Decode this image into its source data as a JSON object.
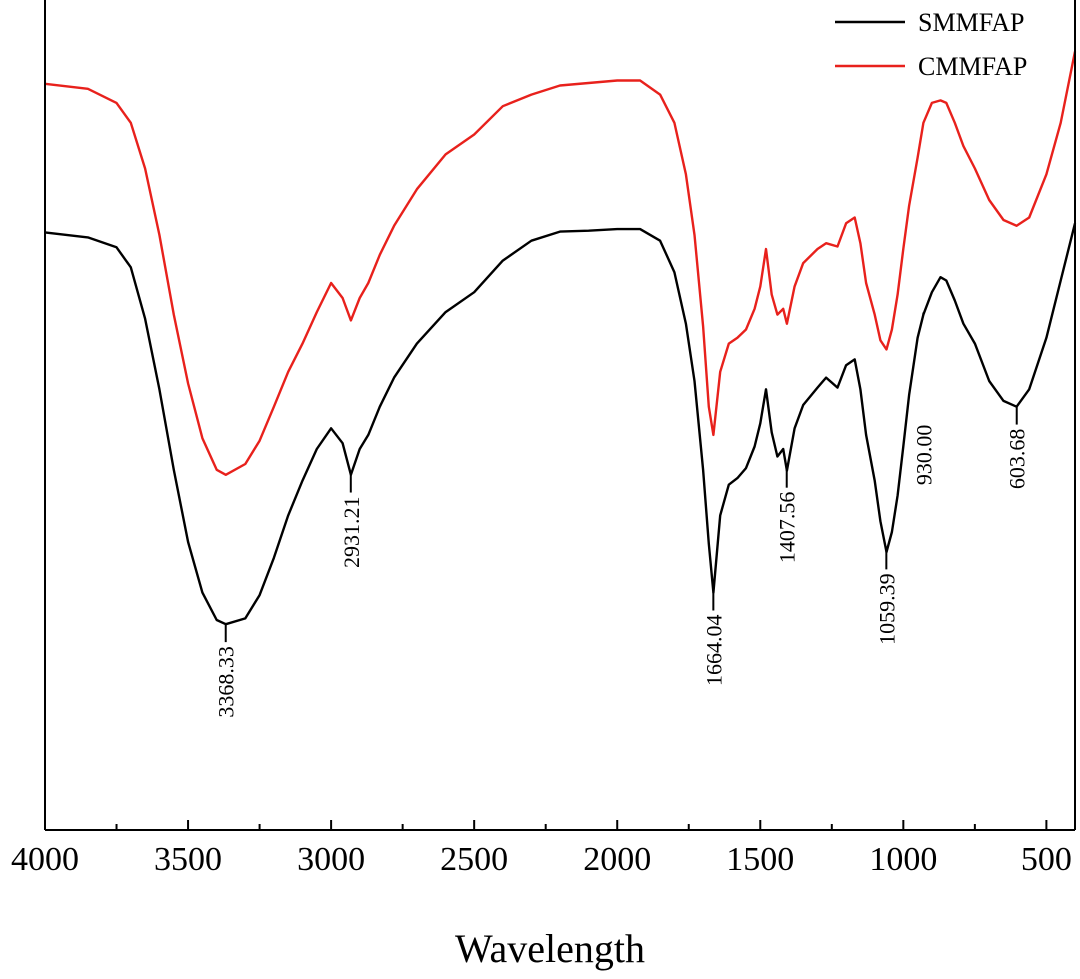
{
  "chart_data": {
    "type": "line",
    "xlabel": "Wavelength",
    "ylabel": "",
    "xlim": [
      4000,
      400
    ],
    "ylim": [
      0,
      100
    ],
    "x_reversed": true,
    "x_ticks": [
      4000,
      3500,
      3000,
      2500,
      2000,
      1500,
      1000,
      500
    ],
    "x_tick_labels": [
      "4000",
      "3500",
      "3000",
      "2500",
      "2000",
      "1500",
      "1000",
      "500"
    ],
    "grid": false,
    "legend_position": "top-right",
    "series": [
      {
        "name": "SMMFAP",
        "color": "#000000",
        "points": [
          [
            4000,
            72.0
          ],
          [
            3850,
            71.4
          ],
          [
            3750,
            70.2
          ],
          [
            3700,
            67.8
          ],
          [
            3650,
            61.6
          ],
          [
            3600,
            53.1
          ],
          [
            3550,
            43.4
          ],
          [
            3500,
            34.7
          ],
          [
            3450,
            28.6
          ],
          [
            3400,
            25.3
          ],
          [
            3368,
            24.8
          ],
          [
            3300,
            25.5
          ],
          [
            3250,
            28.3
          ],
          [
            3200,
            32.8
          ],
          [
            3150,
            37.9
          ],
          [
            3100,
            42.1
          ],
          [
            3050,
            45.9
          ],
          [
            3000,
            48.4
          ],
          [
            2960,
            46.6
          ],
          [
            2931,
            42.8
          ],
          [
            2900,
            45.9
          ],
          [
            2870,
            47.6
          ],
          [
            2830,
            51.0
          ],
          [
            2780,
            54.5
          ],
          [
            2700,
            58.6
          ],
          [
            2600,
            62.4
          ],
          [
            2500,
            64.8
          ],
          [
            2400,
            68.6
          ],
          [
            2300,
            71.0
          ],
          [
            2200,
            72.1
          ],
          [
            2100,
            72.2
          ],
          [
            2000,
            72.4
          ],
          [
            1920,
            72.4
          ],
          [
            1850,
            71.0
          ],
          [
            1800,
            67.2
          ],
          [
            1760,
            61.0
          ],
          [
            1730,
            54.1
          ],
          [
            1700,
            43.4
          ],
          [
            1680,
            34.5
          ],
          [
            1664,
            28.6
          ],
          [
            1640,
            37.9
          ],
          [
            1610,
            41.6
          ],
          [
            1580,
            42.4
          ],
          [
            1550,
            43.6
          ],
          [
            1520,
            46.2
          ],
          [
            1500,
            49.0
          ],
          [
            1480,
            53.1
          ],
          [
            1460,
            47.9
          ],
          [
            1440,
            45.0
          ],
          [
            1420,
            45.9
          ],
          [
            1407,
            43.3
          ],
          [
            1380,
            48.4
          ],
          [
            1350,
            51.2
          ],
          [
            1300,
            53.3
          ],
          [
            1270,
            54.5
          ],
          [
            1230,
            53.3
          ],
          [
            1200,
            56.0
          ],
          [
            1170,
            56.7
          ],
          [
            1150,
            53.1
          ],
          [
            1130,
            47.6
          ],
          [
            1100,
            42.1
          ],
          [
            1080,
            37.2
          ],
          [
            1059,
            33.5
          ],
          [
            1040,
            35.9
          ],
          [
            1020,
            40.3
          ],
          [
            1000,
            46.2
          ],
          [
            980,
            52.4
          ],
          [
            950,
            59.3
          ],
          [
            930,
            62.1
          ],
          [
            900,
            64.8
          ],
          [
            870,
            66.6
          ],
          [
            850,
            66.2
          ],
          [
            820,
            63.8
          ],
          [
            790,
            61.0
          ],
          [
            750,
            58.6
          ],
          [
            700,
            54.1
          ],
          [
            650,
            51.7
          ],
          [
            604,
            51.0
          ],
          [
            560,
            53.1
          ],
          [
            500,
            59.3
          ],
          [
            450,
            66.2
          ],
          [
            400,
            73.1
          ]
        ]
      },
      {
        "name": "CMMFAP",
        "color": "#e8211c",
        "points": [
          [
            4000,
            89.9
          ],
          [
            3850,
            89.3
          ],
          [
            3750,
            87.6
          ],
          [
            3700,
            85.2
          ],
          [
            3650,
            79.7
          ],
          [
            3600,
            71.7
          ],
          [
            3550,
            62.1
          ],
          [
            3500,
            53.8
          ],
          [
            3450,
            47.2
          ],
          [
            3400,
            43.4
          ],
          [
            3368,
            42.8
          ],
          [
            3300,
            44.1
          ],
          [
            3250,
            46.9
          ],
          [
            3200,
            51.0
          ],
          [
            3150,
            55.2
          ],
          [
            3100,
            58.6
          ],
          [
            3050,
            62.4
          ],
          [
            3000,
            65.9
          ],
          [
            2960,
            64.1
          ],
          [
            2931,
            61.4
          ],
          [
            2900,
            64.1
          ],
          [
            2870,
            65.9
          ],
          [
            2830,
            69.3
          ],
          [
            2780,
            72.8
          ],
          [
            2700,
            77.2
          ],
          [
            2600,
            81.4
          ],
          [
            2500,
            83.8
          ],
          [
            2400,
            87.2
          ],
          [
            2300,
            88.6
          ],
          [
            2200,
            89.7
          ],
          [
            2100,
            90.0
          ],
          [
            2000,
            90.3
          ],
          [
            1920,
            90.3
          ],
          [
            1850,
            88.6
          ],
          [
            1800,
            85.2
          ],
          [
            1760,
            79.0
          ],
          [
            1730,
            71.7
          ],
          [
            1700,
            60.7
          ],
          [
            1680,
            51.0
          ],
          [
            1664,
            47.6
          ],
          [
            1640,
            55.2
          ],
          [
            1610,
            58.6
          ],
          [
            1580,
            59.3
          ],
          [
            1550,
            60.3
          ],
          [
            1520,
            62.8
          ],
          [
            1500,
            65.5
          ],
          [
            1480,
            70.0
          ],
          [
            1460,
            64.5
          ],
          [
            1440,
            62.1
          ],
          [
            1420,
            62.8
          ],
          [
            1407,
            61.0
          ],
          [
            1380,
            65.5
          ],
          [
            1350,
            68.3
          ],
          [
            1300,
            70.0
          ],
          [
            1270,
            70.7
          ],
          [
            1230,
            70.3
          ],
          [
            1200,
            73.1
          ],
          [
            1170,
            73.8
          ],
          [
            1150,
            70.7
          ],
          [
            1130,
            65.9
          ],
          [
            1100,
            62.1
          ],
          [
            1080,
            59.0
          ],
          [
            1059,
            57.9
          ],
          [
            1040,
            60.3
          ],
          [
            1020,
            64.5
          ],
          [
            1000,
            70.0
          ],
          [
            980,
            75.2
          ],
          [
            950,
            81.0
          ],
          [
            930,
            85.2
          ],
          [
            900,
            87.6
          ],
          [
            870,
            87.9
          ],
          [
            850,
            87.6
          ],
          [
            820,
            85.2
          ],
          [
            790,
            82.4
          ],
          [
            750,
            79.7
          ],
          [
            700,
            75.9
          ],
          [
            650,
            73.5
          ],
          [
            604,
            72.8
          ],
          [
            560,
            73.8
          ],
          [
            500,
            79.0
          ],
          [
            450,
            85.2
          ],
          [
            400,
            93.8
          ]
        ]
      }
    ],
    "annotations": [
      {
        "label": "3368.33",
        "x": 3368.33,
        "series": 0,
        "side": "below"
      },
      {
        "label": "2931.21",
        "x": 2931.21,
        "series": 0,
        "side": "below"
      },
      {
        "label": "1664.04",
        "x": 1664.04,
        "series": 0,
        "side": "below"
      },
      {
        "label": "1407.56",
        "x": 1407.56,
        "series": 0,
        "side": "below"
      },
      {
        "label": "1059.39",
        "x": 1059.39,
        "series": 0,
        "side": "below"
      },
      {
        "label": "930.00",
        "x": 930.0,
        "series": 0,
        "side": "above"
      },
      {
        "label": "603.68",
        "x": 603.68,
        "series": 0,
        "side": "below"
      }
    ]
  }
}
